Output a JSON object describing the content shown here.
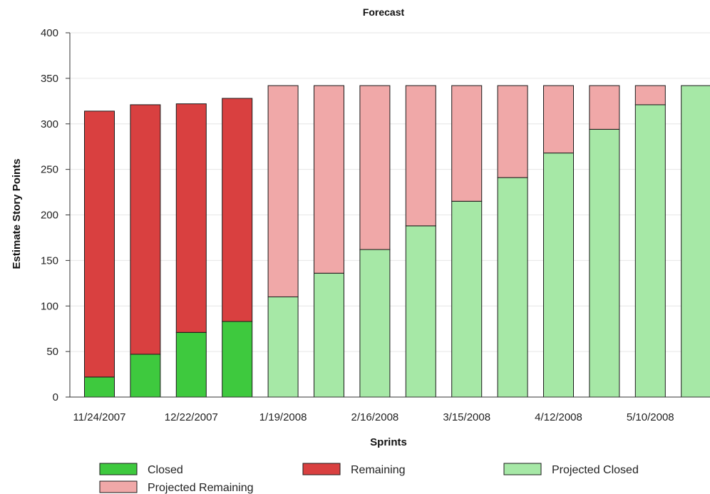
{
  "chart_data": {
    "type": "bar",
    "stacked": true,
    "title": "Forecast",
    "xlabel": "Sprints",
    "ylabel": "Estimate Story Points",
    "ylim": [
      0,
      400
    ],
    "yticks": [
      0,
      50,
      100,
      150,
      200,
      250,
      300,
      350,
      400
    ],
    "grid": true,
    "legend_position": "bottom",
    "categories": [
      "11/24/2007",
      "",
      "12/22/2007",
      "",
      "1/19/2008",
      "",
      "2/16/2008",
      "",
      "3/15/2008",
      "",
      "4/12/2008",
      "",
      "5/10/2008",
      ""
    ],
    "series": [
      {
        "name": "Closed",
        "color": "#3ec93e",
        "values": [
          22,
          47,
          71,
          83,
          0,
          0,
          0,
          0,
          0,
          0,
          0,
          0,
          0,
          0
        ]
      },
      {
        "name": "Remaining",
        "color": "#d94040",
        "values": [
          292,
          274,
          251,
          245,
          0,
          0,
          0,
          0,
          0,
          0,
          0,
          0,
          0,
          0
        ]
      },
      {
        "name": "Projected Closed",
        "color": "#a6e8a6",
        "values": [
          0,
          0,
          0,
          0,
          110,
          136,
          162,
          188,
          215,
          241,
          268,
          294,
          321,
          342
        ]
      },
      {
        "name": "Projected Remaining",
        "color": "#f0a8a8",
        "values": [
          0,
          0,
          0,
          0,
          232,
          206,
          180,
          154,
          127,
          101,
          74,
          48,
          21,
          0
        ]
      }
    ]
  }
}
